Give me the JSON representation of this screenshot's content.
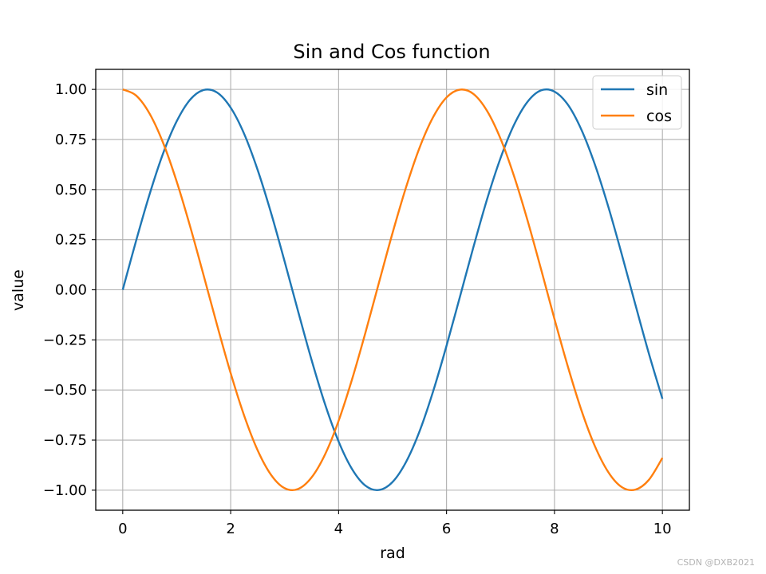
{
  "chart_data": {
    "type": "line",
    "title": "Sin and Cos function",
    "xlabel": "rad",
    "ylabel": "value",
    "xlim": [
      -0.5,
      10.5
    ],
    "ylim": [
      -1.1,
      1.1
    ],
    "xticks": [
      0,
      2,
      4,
      6,
      8,
      10
    ],
    "xtick_labels": [
      "0",
      "2",
      "4",
      "6",
      "8",
      "10"
    ],
    "yticks": [
      1.0,
      0.75,
      0.5,
      0.25,
      0.0,
      -0.25,
      -0.5,
      -0.75,
      -1.0
    ],
    "ytick_labels": [
      "1.00",
      "0.75",
      "0.50",
      "0.25",
      "0.00",
      "−0.25",
      "−0.50",
      "−0.75",
      "−1.00"
    ],
    "grid": true,
    "legend_position": "top-right",
    "x": [
      0,
      0.25,
      0.5,
      0.75,
      1.0,
      1.25,
      1.5,
      1.75,
      2.0,
      2.25,
      2.5,
      2.75,
      3.0,
      3.25,
      3.5,
      3.75,
      4.0,
      4.25,
      4.5,
      4.75,
      5.0,
      5.25,
      5.5,
      5.75,
      6.0,
      6.25,
      6.5,
      6.75,
      7.0,
      7.25,
      7.5,
      7.75,
      8.0,
      8.25,
      8.5,
      8.75,
      9.0,
      9.25,
      9.5,
      9.75,
      10.0
    ],
    "series": [
      {
        "name": "sin",
        "color": "#1f77b4",
        "values": [
          0.0,
          0.247,
          0.479,
          0.682,
          0.841,
          0.949,
          0.997,
          0.984,
          0.909,
          0.778,
          0.598,
          0.382,
          0.141,
          -0.108,
          -0.351,
          -0.572,
          -0.757,
          -0.895,
          -0.978,
          -0.999,
          -0.959,
          -0.859,
          -0.706,
          -0.508,
          -0.279,
          -0.033,
          0.215,
          0.451,
          0.657,
          0.823,
          0.938,
          0.995,
          0.989,
          0.923,
          0.798,
          0.624,
          0.412,
          0.174,
          -0.075,
          -0.319,
          -0.544
        ]
      },
      {
        "name": "cos",
        "color": "#ff7f0e",
        "values": [
          1.0,
          0.969,
          0.878,
          0.732,
          0.54,
          0.315,
          0.071,
          -0.178,
          -0.416,
          -0.628,
          -0.801,
          -0.924,
          -0.99,
          -0.994,
          -0.936,
          -0.821,
          -0.654,
          -0.446,
          -0.211,
          0.038,
          0.284,
          0.512,
          0.709,
          0.861,
          0.96,
          0.999,
          0.977,
          0.893,
          0.754,
          0.568,
          0.347,
          0.104,
          -0.146,
          -0.385,
          -0.602,
          -0.781,
          -0.911,
          -0.985,
          -0.997,
          -0.948,
          -0.839
        ]
      }
    ]
  },
  "watermark": "CSDN @DXB2021"
}
